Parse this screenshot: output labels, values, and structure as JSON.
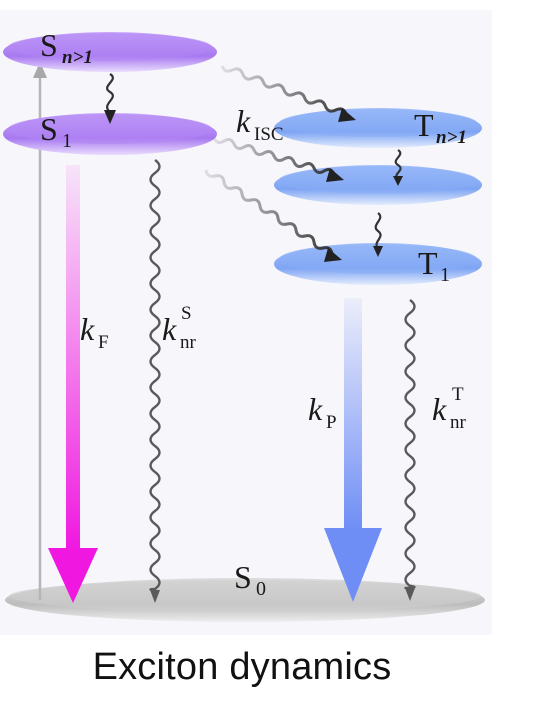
{
  "caption": "Exciton dynamics",
  "levels": {
    "s_high": {
      "main": "S",
      "sub": "n>1"
    },
    "s1": {
      "main": "S",
      "sub": "1"
    },
    "t_high": {
      "main": "T",
      "sub": "n>1"
    },
    "t1": {
      "main": "T",
      "sub": "1"
    },
    "s0": {
      "main": "S",
      "sub": "0"
    }
  },
  "rates": {
    "kF": {
      "main": "k",
      "sub": "F"
    },
    "knrS": {
      "main": "k",
      "sub": "nr",
      "sup": "S"
    },
    "kISC": {
      "main": "k",
      "sub": "ISC"
    },
    "kP": {
      "main": "k",
      "sub": "P"
    },
    "knrT": {
      "main": "k",
      "sub": "nr",
      "sup": "T"
    }
  },
  "colors": {
    "singlet": "#b98ef5",
    "triplet": "#8fb2f6",
    "ground": "#c4c4c4",
    "fluorescence": "#f018e0",
    "phosphorescence": "#6f8ef5",
    "wavy": "#555555"
  }
}
